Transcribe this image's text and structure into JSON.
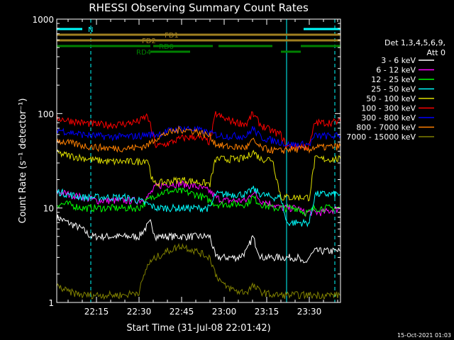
{
  "chart_data": {
    "type": "line",
    "title": "RHESSI Observing Summary Count Rates",
    "xlabel": "Start Time (31-Jul-08 22:01:42)",
    "ylabel": "Count Rate (s⁻¹ detector⁻¹)",
    "y_scale": "log",
    "ylim": [
      1,
      1000
    ],
    "y_ticks": [
      1,
      10,
      100,
      1000
    ],
    "y_tick_labels": [
      "1",
      "10",
      "100",
      "1000"
    ],
    "xlim": [
      "22:01:42",
      "23:41:00"
    ],
    "x_ticks": [
      "22:15",
      "22:30",
      "22:45",
      "23:00",
      "23:15",
      "23:30"
    ],
    "legend": {
      "placement": "right",
      "header": [
        "Det 1,3,4,5,6,9,",
        "Att 0"
      ]
    },
    "series": [
      {
        "name": "3 - 6 keV",
        "color": "#ffffff",
        "x": [
          "22:01",
          "22:05",
          "22:10",
          "22:13",
          "22:20",
          "22:25",
          "22:30",
          "22:32",
          "22:34",
          "22:36",
          "22:40",
          "22:45",
          "22:50",
          "22:55",
          "22:57",
          "23:00",
          "23:05",
          "23:08",
          "23:10",
          "23:13",
          "23:17",
          "23:20",
          "23:22",
          "23:26",
          "23:28",
          "23:30",
          "23:32",
          "23:35",
          "23:41"
        ],
        "values": [
          8,
          7,
          6,
          5,
          5,
          5,
          5,
          6,
          7,
          5,
          5,
          5,
          5,
          5,
          3,
          3,
          3,
          3.5,
          5,
          3,
          3,
          3,
          3,
          3,
          2.5,
          3,
          3.5,
          3.5,
          3.5
        ]
      },
      {
        "name": "6 - 12 keV",
        "color": "#ff00ff",
        "x": [
          "22:01",
          "22:05",
          "22:10",
          "22:15",
          "22:20",
          "22:25",
          "22:30",
          "22:33",
          "22:36",
          "22:40",
          "22:45",
          "22:50",
          "22:55",
          "22:57",
          "23:00",
          "23:05",
          "23:08",
          "23:10",
          "23:13",
          "23:17",
          "23:20",
          "23:22",
          "23:26",
          "23:28",
          "23:30",
          "23:32",
          "23:35",
          "23:41"
        ],
        "values": [
          15,
          14,
          13,
          12,
          12,
          12,
          12,
          13,
          17,
          18,
          18,
          17,
          15,
          13,
          12,
          12,
          12,
          15,
          12,
          11,
          10,
          10,
          10,
          9,
          9,
          9,
          9,
          10
        ]
      },
      {
        "name": "12 - 25 keV",
        "color": "#00ff00",
        "x": [
          "22:01",
          "22:05",
          "22:10",
          "22:15",
          "22:20",
          "22:25",
          "22:30",
          "22:33",
          "22:36",
          "22:40",
          "22:45",
          "22:50",
          "22:55",
          "22:57",
          "23:00",
          "23:05",
          "23:08",
          "23:10",
          "23:13",
          "23:17",
          "23:20",
          "23:22",
          "23:26",
          "23:28",
          "23:30",
          "23:32",
          "23:35",
          "23:41"
        ],
        "values": [
          11,
          11,
          10,
          10,
          10,
          10,
          10,
          12,
          14,
          15,
          15,
          14,
          12,
          11,
          11,
          11,
          11,
          13,
          11,
          10,
          10,
          10,
          10,
          9,
          9,
          10,
          10,
          10
        ]
      },
      {
        "name": "25 - 50 keV",
        "color": "#00ffff",
        "x": [
          "22:01",
          "22:05",
          "22:10",
          "22:15",
          "22:20",
          "22:25",
          "22:30",
          "22:33",
          "22:36",
          "22:40",
          "22:45",
          "22:50",
          "22:55",
          "22:57",
          "23:00",
          "23:05",
          "23:08",
          "23:10",
          "23:13",
          "23:17",
          "23:20",
          "23:22",
          "23:26",
          "23:28",
          "23:30",
          "23:32",
          "23:35",
          "23:41"
        ],
        "values": [
          15,
          14,
          13,
          13,
          13,
          13,
          12,
          11,
          10,
          10,
          10,
          10,
          10,
          14,
          14,
          14,
          14,
          16,
          14,
          13,
          13,
          7,
          7,
          7,
          7,
          14,
          14,
          14
        ]
      },
      {
        "name": "50 - 100 keV",
        "color": "#e0e000",
        "x": [
          "22:01",
          "22:05",
          "22:10",
          "22:15",
          "22:20",
          "22:25",
          "22:30",
          "22:33",
          "22:35",
          "22:40",
          "22:45",
          "22:50",
          "22:55",
          "22:57",
          "23:00",
          "23:05",
          "23:08",
          "23:10",
          "23:13",
          "23:17",
          "23:20",
          "23:22",
          "23:26",
          "23:28",
          "23:30",
          "23:32",
          "23:35",
          "23:41"
        ],
        "values": [
          38,
          36,
          34,
          32,
          31,
          31,
          31,
          33,
          18,
          19,
          20,
          19,
          18,
          33,
          33,
          33,
          34,
          40,
          33,
          33,
          13,
          13,
          13,
          13,
          13,
          33,
          33,
          33
        ]
      },
      {
        "name": "100 - 300 keV",
        "color": "#ff0000",
        "x": [
          "22:01",
          "22:05",
          "22:10",
          "22:15",
          "22:20",
          "22:25",
          "22:30",
          "22:33",
          "22:36",
          "22:40",
          "22:45",
          "22:50",
          "22:55",
          "22:57",
          "23:00",
          "23:05",
          "23:08",
          "23:10",
          "23:13",
          "23:17",
          "23:20",
          "23:22",
          "23:26",
          "23:28",
          "23:30",
          "23:32",
          "23:35",
          "23:41"
        ],
        "values": [
          90,
          85,
          80,
          77,
          76,
          78,
          83,
          95,
          45,
          48,
          55,
          57,
          50,
          100,
          88,
          80,
          78,
          100,
          75,
          65,
          60,
          45,
          45,
          45,
          45,
          80,
          80,
          82
        ]
      },
      {
        "name": "300 - 800 keV",
        "color": "#0000ff",
        "x": [
          "22:01",
          "22:05",
          "22:10",
          "22:15",
          "22:20",
          "22:25",
          "22:30",
          "22:33",
          "22:36",
          "22:40",
          "22:45",
          "22:50",
          "22:55",
          "22:57",
          "23:00",
          "23:05",
          "23:08",
          "23:10",
          "23:13",
          "23:17",
          "23:20",
          "23:22",
          "23:26",
          "23:28",
          "23:30",
          "23:32",
          "23:35",
          "23:41"
        ],
        "values": [
          68,
          64,
          60,
          58,
          57,
          57,
          58,
          60,
          60,
          65,
          70,
          68,
          62,
          60,
          58,
          58,
          58,
          70,
          56,
          52,
          50,
          47,
          47,
          47,
          47,
          58,
          58,
          58
        ]
      },
      {
        "name": "800 - 7000 keV",
        "color": "#ff8000",
        "x": [
          "22:01",
          "22:05",
          "22:10",
          "22:15",
          "22:20",
          "22:25",
          "22:30",
          "22:33",
          "22:36",
          "22:40",
          "22:45",
          "22:50",
          "22:55",
          "22:57",
          "23:00",
          "23:05",
          "23:08",
          "23:10",
          "23:13",
          "23:17",
          "23:20",
          "23:22",
          "23:26",
          "23:28",
          "23:30",
          "23:32",
          "23:35",
          "23:41"
        ],
        "values": [
          52,
          49,
          46,
          44,
          43,
          43,
          44,
          46,
          55,
          62,
          68,
          65,
          58,
          48,
          45,
          44,
          44,
          52,
          43,
          41,
          40,
          42,
          42,
          42,
          42,
          44,
          44,
          45
        ]
      },
      {
        "name": "7000 - 15000 keV",
        "color": "#808000",
        "x": [
          "22:01",
          "22:05",
          "22:10",
          "22:15",
          "22:20",
          "22:25",
          "22:30",
          "22:33",
          "22:36",
          "22:40",
          "22:45",
          "22:50",
          "22:55",
          "22:57",
          "23:00",
          "23:05",
          "23:08",
          "23:10",
          "23:13",
          "23:17",
          "23:20",
          "23:22",
          "23:26",
          "23:28",
          "23:30",
          "23:32",
          "23:35",
          "23:41"
        ],
        "values": [
          1.5,
          1.3,
          1.2,
          1.2,
          1.2,
          1.2,
          1.3,
          2.5,
          3,
          3.5,
          4,
          3.5,
          3,
          2,
          1.5,
          1.3,
          1.3,
          1.5,
          1.3,
          1.2,
          1.2,
          1.2,
          1.2,
          1.2,
          1.2,
          1.2,
          1.2,
          1.2
        ]
      }
    ],
    "flags": [
      {
        "label": "N",
        "color": "#00ffff",
        "segments": [
          [
            "22:01",
            "22:10"
          ],
          [
            "23:28",
            "23:41"
          ]
        ],
        "label_at": "22:12",
        "level": 0
      },
      {
        "label": "FD1",
        "color": "#a08020",
        "segments": [
          [
            "22:01",
            "23:41"
          ]
        ],
        "label_at": "22:39",
        "level": 1
      },
      {
        "label": "FD2",
        "color": "#a08020",
        "segments": [
          [
            "22:01",
            "23:41"
          ]
        ],
        "label_at": "22:31",
        "level": 2
      },
      {
        "label": "RD0",
        "color": "#008000",
        "segments": [
          [
            "22:01",
            "22:34"
          ],
          [
            "22:35",
            "22:56"
          ],
          [
            "22:58",
            "23:17"
          ],
          [
            "23:27",
            "23:41"
          ]
        ],
        "label_at": "22:37",
        "level": 3
      },
      {
        "label": "RD4",
        "color": "#008000",
        "segments": [
          [
            "22:34",
            "22:48"
          ],
          [
            "23:20",
            "23:27"
          ]
        ],
        "label_at": "22:29",
        "level": 4
      }
    ],
    "vertical_markers": [
      {
        "at": "22:01",
        "color": "#00ffff",
        "style": "solid"
      },
      {
        "at": "22:13",
        "color": "#00ffff",
        "style": "dashed"
      },
      {
        "at": "23:22",
        "color": "#00ffff",
        "style": "solid"
      },
      {
        "at": "23:39",
        "color": "#00ffff",
        "style": "dashed"
      }
    ]
  },
  "footer": {
    "timestamp": "15-Oct-2021 01:03"
  }
}
